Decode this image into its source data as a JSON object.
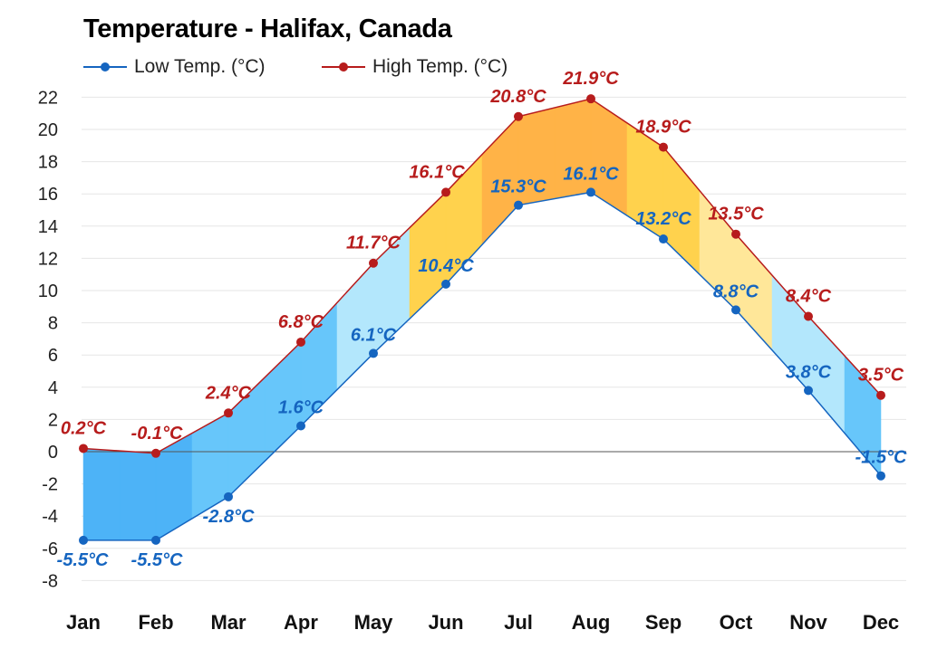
{
  "title": "Temperature - Halifax, Canada",
  "colors": {
    "low": "#1565c0",
    "high": "#b71c1c",
    "zero_line": "#555555",
    "grid": "#e6e6e6"
  },
  "chart_data": {
    "type": "area",
    "title": "Temperature - Halifax, Canada",
    "categories": [
      "Jan",
      "Feb",
      "Mar",
      "Apr",
      "May",
      "Jun",
      "Jul",
      "Aug",
      "Sep",
      "Oct",
      "Nov",
      "Dec"
    ],
    "series": [
      {
        "name": "Low Temp. (°C)",
        "values": [
          -5.5,
          -5.5,
          -2.8,
          1.6,
          6.1,
          10.4,
          15.3,
          16.1,
          13.2,
          8.8,
          3.8,
          -1.5
        ],
        "labels": [
          "-5.5°C",
          "-5.5°C",
          "-2.8°C",
          "1.6°C",
          "6.1°C",
          "10.4°C",
          "15.3°C",
          "16.1°C",
          "13.2°C",
          "8.8°C",
          "3.8°C",
          "-1.5°C"
        ]
      },
      {
        "name": "High Temp. (°C)",
        "values": [
          0.2,
          -0.1,
          2.4,
          6.8,
          11.7,
          16.1,
          20.8,
          21.9,
          18.9,
          13.5,
          8.4,
          3.5
        ],
        "labels": [
          "0.2°C",
          "-0.1°C",
          "2.4°C",
          "6.8°C",
          "11.7°C",
          "16.1°C",
          "20.8°C",
          "21.9°C",
          "18.9°C",
          "13.5°C",
          "8.4°C",
          "3.5°C"
        ]
      }
    ],
    "band_fill_colors": [
      "#4db3f7",
      "#4db3f7",
      "#67c6fa",
      "#67c6fa",
      "#b3e7fc",
      "#ffd24d",
      "#ffb347",
      "#ffb347",
      "#ffd24d",
      "#ffe799",
      "#b3e7fc",
      "#67c6fa",
      "#4db3f7"
    ],
    "yticks": [
      "22",
      "20",
      "18",
      "16",
      "14",
      "12",
      "10",
      "8",
      "6",
      "4",
      "2",
      "0",
      "-2",
      "-4",
      "-6",
      "-8"
    ],
    "ylim": [
      -9,
      22.5
    ],
    "grid": true,
    "legend_position": "top-left",
    "xlabel": "",
    "ylabel": ""
  }
}
